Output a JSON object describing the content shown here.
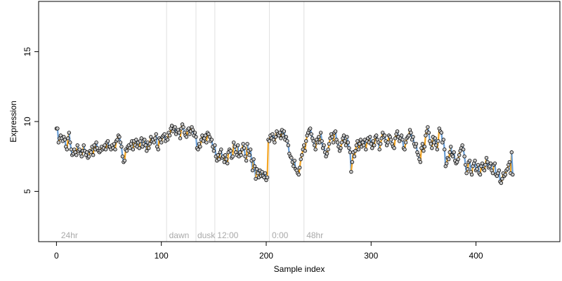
{
  "chart_data": {
    "type": "line",
    "xlabel": "Sample index",
    "ylabel": "Expression",
    "xlim": [
      -17,
      480
    ],
    "ylim": [
      1.4,
      18.6
    ],
    "x_ticks": [
      0,
      100,
      200,
      300,
      400
    ],
    "y_ticks": [
      5,
      10,
      15
    ],
    "grid": false,
    "colors": {
      "rising_segment": "#f5a623",
      "falling_segment": "#6a9fd8",
      "point_fill": "#c8c8c8",
      "point_stroke": "#000000",
      "annotation": "#a9a9a9",
      "divider": "#e0e0e0"
    },
    "annotations": [
      {
        "label": "24hr",
        "x": 3
      },
      {
        "label": "dawn",
        "x": 106
      },
      {
        "label": "dusk",
        "x": 133
      },
      {
        "label": "12:00",
        "x": 152
      },
      {
        "label": "0:00",
        "x": 204
      },
      {
        "label": "48hr",
        "x": 237
      }
    ],
    "dividers": [
      105,
      133,
      151,
      203,
      236
    ],
    "series": [
      {
        "x_start": 0,
        "values": [
          9.5,
          9.5,
          8.5,
          8.8,
          9.0,
          8.8,
          8.6,
          8.9,
          8.7,
          8.2,
          8.0,
          8.8,
          9.2,
          8.5,
          8.0,
          7.6,
          7.7,
          8.0,
          7.8,
          7.6,
          8.3,
          7.9,
          8.0,
          7.7,
          7.5,
          7.9,
          8.3,
          7.9,
          7.6,
          7.8,
          7.4,
          7.5,
          7.9,
          7.8,
          8.2,
          7.6,
          8.3,
          8.0,
          8.5,
          8.1,
          7.9,
          7.8,
          7.9,
          8.2,
          8.0,
          8.1,
          8.3,
          8.0,
          8.5,
          8.6,
          8.2,
          8.2,
          8.0,
          8.3,
          8.1,
          8.4,
          8.0,
          8.6,
          8.7,
          9.0,
          8.9,
          8.5,
          8.2,
          7.5,
          7.1,
          7.2,
          8.0,
          7.9,
          8.2,
          8.3,
          8.1,
          8.4,
          8.6,
          8.0,
          8.6,
          8.3,
          8.7,
          8.2,
          8.5,
          8.1,
          8.6,
          8.8,
          8.2,
          8.4,
          8.7,
          8.3,
          7.9,
          8.5,
          8.1,
          8.4,
          8.9,
          8.6,
          8.7,
          8.5,
          8.8,
          9.1,
          8.2,
          8.0,
          8.8,
          8.7,
          8.5,
          8.9,
          9.0,
          9.1,
          8.6,
          8.8,
          8.7,
          9.2,
          9.0,
          9.5,
          9.7,
          9.3,
          9.5,
          9.6,
          9.1,
          9.3,
          9.4,
          9.2,
          8.8,
          9.5,
          9.8,
          9.6,
          9.2,
          9.0,
          8.9,
          9.4,
          9.5,
          9.1,
          9.3,
          9.6,
          9.4,
          9.0,
          9.2,
          8.9,
          8.1,
          8.0,
          8.4,
          8.2,
          8.7,
          9.0,
          8.6,
          8.8,
          9.0,
          8.5,
          9.2,
          9.1,
          8.9,
          8.6,
          8.7,
          8.2,
          7.9,
          8.3,
          7.5,
          7.2,
          7.6,
          7.3,
          7.8,
          8.0,
          7.4,
          7.5,
          7.1,
          7.6,
          7.3,
          7.0,
          7.8,
          8.0,
          7.9,
          7.4,
          7.5,
          8.5,
          8.2,
          7.8,
          7.6,
          8.3,
          7.5,
          7.8,
          7.6,
          8.0,
          8.4,
          8.1,
          7.5,
          7.2,
          8.4,
          7.9,
          7.6,
          8.0,
          7.2,
          6.5,
          7.3,
          6.8,
          5.9,
          6.6,
          6.3,
          6.0,
          6.5,
          6.1,
          6.4,
          6.1,
          6.0,
          6.3,
          5.8,
          6.0,
          8.7,
          8.6,
          9.0,
          8.8,
          9.1,
          8.7,
          8.5,
          8.9,
          9.3,
          9.1,
          9.0,
          9.2,
          8.8,
          9.4,
          9.0,
          9.3,
          8.7,
          8.9,
          8.6,
          8.3,
          7.7,
          7.5,
          7.4,
          7.1,
          6.8,
          7.2,
          6.6,
          6.5,
          6.3,
          6.2,
          6.7,
          7.3,
          7.6,
          8.0,
          8.3,
          7.9,
          8.6,
          9.0,
          9.2,
          9.4,
          9.5,
          9.1,
          8.8,
          8.6,
          8.3,
          8.0,
          8.7,
          8.5,
          8.9,
          8.5,
          9.2,
          8.6,
          8.1,
          8.3,
          7.8,
          7.5,
          7.7,
          8.0,
          8.4,
          8.8,
          9.1,
          8.9,
          8.5,
          9.2,
          9.3,
          8.7,
          8.5,
          8.2,
          7.9,
          8.1,
          8.5,
          8.8,
          9.0,
          8.6,
          8.3,
          8.9,
          8.5,
          8.1,
          7.8,
          6.4,
          7.1,
          7.8,
          7.5,
          7.9,
          8.3,
          8.6,
          8.0,
          8.4,
          8.7,
          8.2,
          8.5,
          8.3,
          8.7,
          8.0,
          8.6,
          8.8,
          8.5,
          8.9,
          8.4,
          8.1,
          8.6,
          8.3,
          8.9,
          9.0,
          8.7,
          8.5,
          8.0,
          8.4,
          8.8,
          9.2,
          8.9,
          9.0,
          8.6,
          8.3,
          8.5,
          9.0,
          8.9,
          8.7,
          8.4,
          8.2,
          8.1,
          8.8,
          9.1,
          9.3,
          8.9,
          8.6,
          8.8,
          9.0,
          8.7,
          8.1,
          8.0,
          8.5,
          8.8,
          8.9,
          9.0,
          9.4,
          9.2,
          8.7,
          8.9,
          8.4,
          8.2,
          8.4,
          7.8,
          7.6,
          7.3,
          7.1,
          8.1,
          8.4,
          7.9,
          8.2,
          9.0,
          9.3,
          9.6,
          9.2,
          8.6,
          8.4,
          8.1,
          8.9,
          8.5,
          8.8,
          8.3,
          8.0,
          8.6,
          9.5,
          9.3,
          9.2,
          8.5,
          8.7,
          8.0,
          6.8,
          7.0,
          7.4,
          7.3,
          7.8,
          8.2,
          7.6,
          7.5,
          7.8,
          7.2,
          7.0,
          7.1,
          7.3,
          7.6,
          7.9,
          8.1,
          8.3,
          8.0,
          7.5,
          6.9,
          6.3,
          6.6,
          7.1,
          7.2,
          6.4,
          6.2,
          6.8,
          7.0,
          7.2,
          6.5,
          6.6,
          6.9,
          6.3,
          6.2,
          6.8,
          7.0,
          6.6,
          6.5,
          6.9,
          7.4,
          7.1,
          6.7,
          6.8,
          7.0,
          6.5,
          6.3,
          6.9,
          7.0,
          6.2,
          6.1,
          6.3,
          6.5,
          5.7,
          5.6,
          5.9,
          6.3,
          6.1,
          6.2,
          6.5,
          6.6,
          6.9,
          7.1,
          6.3,
          7.8,
          6.2
        ]
      }
    ]
  }
}
